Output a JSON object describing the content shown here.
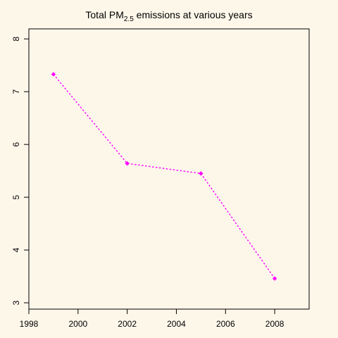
{
  "chart_data": {
    "type": "line",
    "title_main": "Total PM",
    "title_sub": "2.5",
    "title_rest": " emissions at various years",
    "xlabel": "",
    "ylabel": "",
    "x": [
      1999,
      2002,
      2005,
      2008
    ],
    "series": [
      {
        "values": [
          7.33,
          5.64,
          5.45,
          3.46
        ],
        "color": "#ff00ff",
        "line_style": "dotted",
        "marker": "filled-diamond"
      }
    ],
    "xlim": [
      1998,
      2009.4
    ],
    "ylim": [
      2.88,
      8.19
    ],
    "xticks": [
      "1998",
      "2000",
      "2002",
      "2004",
      "2006",
      "2008"
    ],
    "yticks": [
      "3",
      "4",
      "5",
      "6",
      "7",
      "8"
    ],
    "grid": false,
    "background": "#fdf7ea",
    "line_color": "#ff00ff"
  }
}
